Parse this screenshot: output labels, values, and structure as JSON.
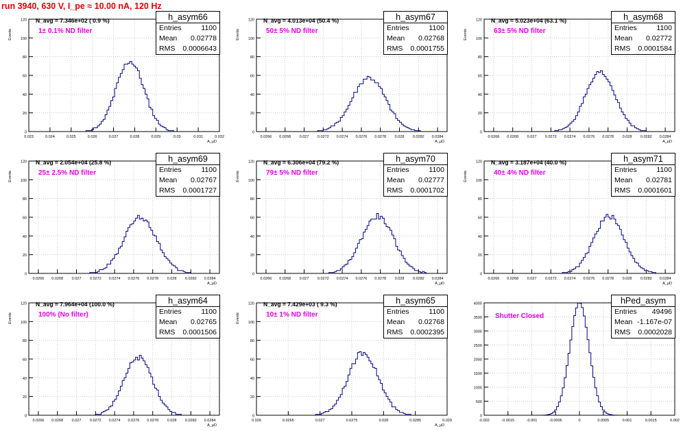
{
  "header": {
    "title": "run 3940,   630 V, I_pe ≈ 10.00 nA, 120 Hz"
  },
  "colors": {
    "title": "#e00000",
    "histogram": "#000080",
    "filter_label": "#e000e0",
    "grid": "#c8c8c8"
  },
  "chart_data": [
    {
      "type": "histogram",
      "name": "h_asym66",
      "stats": {
        "entries": "1100",
        "mean": "0.02778",
        "rms": "0.0006643"
      },
      "stat_labels": {
        "entries": "Entries",
        "mean": "Mean",
        "rms": "RMS"
      },
      "navg": "N_avg = 7.346e+02 ( 0.9 %)",
      "filter": "1± 0.1% ND filter",
      "ylabel": "Events",
      "xlabel": "A_μD",
      "xlim": [
        0.023,
        0.032
      ],
      "ylim": [
        0,
        120
      ],
      "xticks": [
        "0.023",
        "0.024",
        "0.025",
        "0.026",
        "0.027",
        "0.028",
        "0.029",
        "0.03",
        "0.031",
        "0.032"
      ],
      "yticks": [
        "0",
        "20",
        "40",
        "60",
        "80",
        "100",
        "120"
      ],
      "mean": 0.02778,
      "rms": 0.0006643,
      "peak": 75
    },
    {
      "type": "histogram",
      "name": "h_asym67",
      "stats": {
        "entries": "1100",
        "mean": "0.02768",
        "rms": "0.0001755"
      },
      "stat_labels": {
        "entries": "Entries",
        "mean": "Mean",
        "rms": "RMS"
      },
      "navg": "N_avg = 4.013e+04 (50.4 %)",
      "filter": "50± 5% ND filter",
      "ylabel": "Events",
      "xlabel": "A_μD",
      "xlim": [
        0.0265,
        0.0285
      ],
      "ylim": [
        0,
        120
      ],
      "xticks": [
        "0.0266",
        "0.0268",
        "0.027",
        "0.0272",
        "0.0274",
        "0.0276",
        "0.0278",
        "0.028",
        "0.0282",
        "0.0284"
      ],
      "yticks": [
        "0",
        "20",
        "40",
        "60",
        "80",
        "100",
        "120"
      ],
      "mean": 0.02768,
      "rms": 0.0001755,
      "peak": 58
    },
    {
      "type": "histogram",
      "name": "h_asym68",
      "stats": {
        "entries": "1100",
        "mean": "0.02772",
        "rms": "0.0001584"
      },
      "stat_labels": {
        "entries": "Entries",
        "mean": "Mean",
        "rms": "RMS"
      },
      "navg": "N_avg = 5.023e+04 (63.1 %)",
      "filter": "63± 5% ND filter",
      "ylabel": "Events",
      "xlabel": "A_μD",
      "xlim": [
        0.0265,
        0.0285
      ],
      "ylim": [
        0,
        120
      ],
      "xticks": [
        "0.0266",
        "0.0268",
        "0.027",
        "0.0272",
        "0.0274",
        "0.0276",
        "0.0278",
        "0.028",
        "0.0282",
        "0.0284"
      ],
      "yticks": [
        "0",
        "20",
        "40",
        "60",
        "80",
        "100",
        "120"
      ],
      "mean": 0.02772,
      "rms": 0.0001584,
      "peak": 62
    },
    {
      "type": "histogram",
      "name": "h_asym69",
      "stats": {
        "entries": "1100",
        "mean": "0.02767",
        "rms": "0.0001727"
      },
      "stat_labels": {
        "entries": "Entries",
        "mean": "Mean",
        "rms": "RMS"
      },
      "navg": "N_avg = 2.054e+04 (25.8 %)",
      "filter": "25± 2.5% ND filter",
      "ylabel": "Events",
      "xlabel": "A_μD",
      "xlim": [
        0.0265,
        0.0285
      ],
      "ylim": [
        0,
        120
      ],
      "xticks": [
        "0.0266",
        "0.0268",
        "0.027",
        "0.0272",
        "0.0274",
        "0.0276",
        "0.0278",
        "0.028",
        "0.0282",
        "0.0284"
      ],
      "yticks": [
        "0",
        "20",
        "40",
        "60",
        "80",
        "100",
        "120"
      ],
      "mean": 0.02767,
      "rms": 0.0001727,
      "peak": 60
    },
    {
      "type": "histogram",
      "name": "h_asym70",
      "stats": {
        "entries": "1100",
        "mean": "0.02777",
        "rms": "0.0001702"
      },
      "stat_labels": {
        "entries": "Entries",
        "mean": "Mean",
        "rms": "RMS"
      },
      "navg": "N_avg = 6.306e+04 (79.2 %)",
      "filter": "79± 5% ND filter",
      "ylabel": "Events",
      "xlabel": "A_μD",
      "xlim": [
        0.0265,
        0.0285
      ],
      "ylim": [
        0,
        120
      ],
      "xticks": [
        "0.0266",
        "0.0268",
        "0.027",
        "0.0272",
        "0.0274",
        "0.0276",
        "0.0278",
        "0.028",
        "0.0282",
        "0.0284"
      ],
      "yticks": [
        "0",
        "20",
        "40",
        "60",
        "80",
        "100",
        "120"
      ],
      "mean": 0.02777,
      "rms": 0.0001702,
      "peak": 61
    },
    {
      "type": "histogram",
      "name": "h_asym71",
      "stats": {
        "entries": "1100",
        "mean": "0.02781",
        "rms": "0.0001601"
      },
      "stat_labels": {
        "entries": "Entries",
        "mean": "Mean",
        "rms": "RMS"
      },
      "navg": "N_avg = 3.187e+04 (40.0 %)",
      "filter": "40± 4% ND filter",
      "ylabel": "Events",
      "xlabel": "A_μD",
      "xlim": [
        0.0265,
        0.0285
      ],
      "ylim": [
        0,
        120
      ],
      "xticks": [
        "0.0266",
        "0.0268",
        "0.027",
        "0.0272",
        "0.0274",
        "0.0276",
        "0.0278",
        "0.028",
        "0.0282",
        "0.0284"
      ],
      "yticks": [
        "0",
        "20",
        "40",
        "60",
        "80",
        "100",
        "120"
      ],
      "mean": 0.02781,
      "rms": 0.0001601,
      "peak": 61
    },
    {
      "type": "histogram",
      "name": "h_asym64",
      "stats": {
        "entries": "1100",
        "mean": "0.02765",
        "rms": "0.0001506"
      },
      "stat_labels": {
        "entries": "Entries",
        "mean": "Mean",
        "rms": "RMS"
      },
      "navg": "N_avg = 7.964e+04 (100.0 %)",
      "filter": "100% (No filter)",
      "ylabel": "Events",
      "xlabel": "A_μD",
      "xlim": [
        0.0265,
        0.0285
      ],
      "ylim": [
        0,
        120
      ],
      "xticks": [
        "0.0266",
        "0.0268",
        "0.027",
        "0.0272",
        "0.0274",
        "0.0276",
        "0.0278",
        "0.028",
        "0.0282",
        "0.0284"
      ],
      "yticks": [
        "0",
        "20",
        "40",
        "60",
        "80",
        "100",
        "120"
      ],
      "mean": 0.02765,
      "rms": 0.0001506,
      "peak": 62
    },
    {
      "type": "histogram",
      "name": "h_asym65",
      "stats": {
        "entries": "1100",
        "mean": "0.02768",
        "rms": "0.0002395"
      },
      "stat_labels": {
        "entries": "Entries",
        "mean": "Mean",
        "rms": "RMS"
      },
      "navg": "N_avg = 7.429e+03 ( 9.3 %)",
      "filter": "10± 1% ND filter",
      "ylabel": "Events",
      "xlabel": "A_μD",
      "xlim": [
        0.026,
        0.029
      ],
      "ylim": [
        0,
        120
      ],
      "xticks": [
        "0.026",
        "0.0265",
        "0.027",
        "0.0275",
        "0.028",
        "0.0285",
        "0.029"
      ],
      "yticks": [
        "0",
        "20",
        "40",
        "60",
        "80",
        "100",
        "120"
      ],
      "mean": 0.02768,
      "rms": 0.0002395,
      "peak": 67
    },
    {
      "type": "histogram",
      "name": "hPed_asym",
      "stats": {
        "entries": "49496",
        "mean": "-1.167e-07",
        "rms": "0.0002028"
      },
      "stat_labels": {
        "entries": "Entries",
        "mean": "Mean",
        "rms": "RMS"
      },
      "navg": "",
      "filter": "Shutter Closed",
      "ylabel": "",
      "xlabel": "",
      "xlim": [
        -0.002,
        0.002
      ],
      "ylim": [
        0,
        4000
      ],
      "xticks": [
        "-0.002",
        "-0.0015",
        "-0.001",
        "-0.0005",
        "0",
        "0.0005",
        "0.001",
        "0.0015",
        "0.002"
      ],
      "yticks": [
        "0",
        "500",
        "1000",
        "1500",
        "2000",
        "2500",
        "3000",
        "3500",
        "4000"
      ],
      "mean": 0.0,
      "rms": 0.0002028,
      "peak": 4000
    }
  ]
}
